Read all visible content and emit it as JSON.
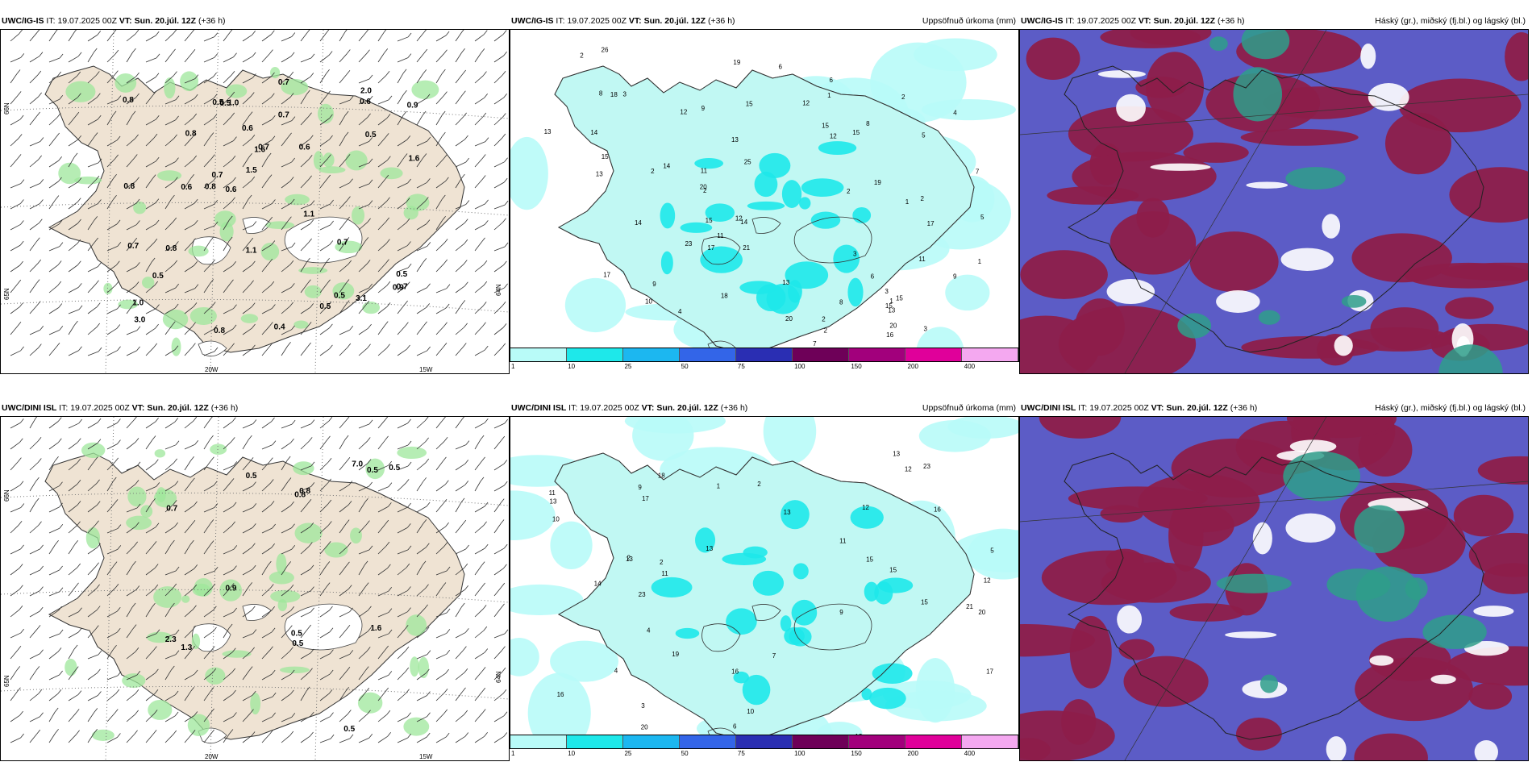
{
  "rows": [
    {
      "model": "UWC/IG-IS",
      "it_label": "IT:",
      "it_value": "19.07.2025 00Z",
      "vt_label": "VT:",
      "vt_value": "Sun. 20.júl. 12Z",
      "lead": "(+36 h)",
      "wind_labels": [
        "0.7",
        "0.6",
        "0.5",
        "0.5",
        "0.6",
        "0.8",
        "0.9",
        "1.1",
        "0.6",
        "0.5",
        "0.6",
        "0.9",
        "0.7",
        "0.5",
        "1.6",
        "0.8",
        "0.4",
        "1.0",
        "0.7",
        "1.5",
        "3.0",
        "3.1",
        "1.6",
        "2.0",
        "0.8",
        "0.7",
        "1.0",
        "0.5",
        "0.6",
        "0.7",
        "0.8",
        "0.7",
        "0.5",
        "0.5",
        "0.7",
        "1.1",
        "0.8",
        "0.8"
      ],
      "precip_labels": [
        "2",
        "2",
        "3",
        "1",
        "1",
        "2",
        "3",
        "17",
        "2",
        "2",
        "2",
        "4",
        "6",
        "7",
        "9",
        "11",
        "8",
        "6",
        "11",
        "13",
        "15",
        "13",
        "18",
        "15",
        "14",
        "23",
        "26",
        "10",
        "15",
        "17",
        "13",
        "15",
        "15",
        "21",
        "19",
        "15",
        "20",
        "14",
        "12",
        "19",
        "13",
        "18",
        "17",
        "25",
        "15",
        "13",
        "20",
        "12",
        "14",
        "12",
        "12",
        "14",
        "11",
        "5",
        "9",
        "20",
        "16",
        "8",
        "6",
        "2",
        "7",
        "9",
        "4",
        "5",
        "3",
        "1",
        "2",
        "8",
        "3",
        "1"
      ],
      "xaxis": [
        "20W",
        "15W"
      ],
      "yaxis": [
        "66N",
        "65N",
        "64N"
      ]
    },
    {
      "model": "UWC/DINI ISL",
      "it_label": "IT:",
      "it_value": "19.07.2025 00Z",
      "vt_label": "VT:",
      "vt_value": "Sun. 20.júl. 12Z",
      "lead": "(+36 h)",
      "wind_labels": [
        "7.0",
        "1.6",
        "1.3",
        "0.5",
        "0.8",
        "0.5",
        "0.8",
        "0.9",
        "0.5",
        "2.3",
        "0.5",
        "0.5",
        "0.5",
        "0.7"
      ],
      "precip_labels": [
        "2",
        "4",
        "9",
        "2",
        "13",
        "15",
        "16",
        "13",
        "23",
        "12",
        "15",
        "16",
        "19",
        "10",
        "7",
        "17",
        "16",
        "12",
        "14",
        "13",
        "15",
        "11",
        "13",
        "20",
        "13",
        "17",
        "11",
        "10",
        "12",
        "6",
        "9",
        "11",
        "23",
        "20",
        "21",
        "18",
        "12",
        "4",
        "5",
        "3",
        "2",
        "1"
      ],
      "xaxis": [
        "20W",
        "15W"
      ],
      "yaxis": [
        "66N",
        "65N",
        "64N"
      ]
    }
  ],
  "precip_title": "Uppsöfnuð úrkoma (mm)",
  "cloud_title": "Háský (gr.), miðský (fj.bl.) og lágský (bl.)",
  "legend": {
    "colors": [
      "#b8fbf8",
      "#1ee8ea",
      "#1cb7f0",
      "#3365e8",
      "#2a2eb3",
      "#6e0058",
      "#a2007c",
      "#e0009a",
      "#f4a8f0"
    ],
    "ticks": [
      "1",
      "10",
      "25",
      "50",
      "75",
      "100",
      "150",
      "200",
      "400"
    ]
  },
  "colors": {
    "land": "#efe3d3",
    "precip_light": "#b8fbf8",
    "precip_mid": "#1ee8ea",
    "wind_green": "#9de79b",
    "cloud_high": "#8d1d4a",
    "cloud_bg": "#5c5cc6",
    "cloud_low": "#2e9d8a"
  }
}
